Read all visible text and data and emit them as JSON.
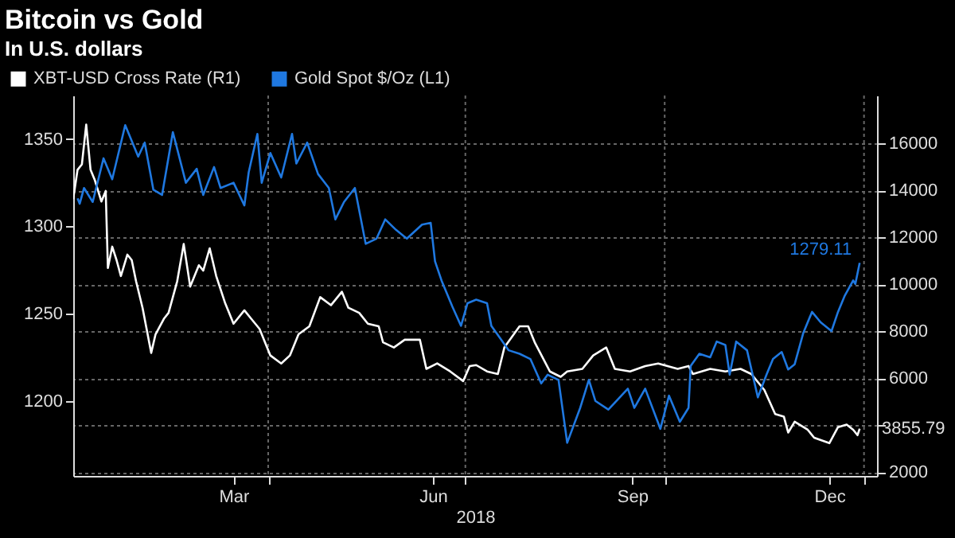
{
  "chart_data": {
    "type": "line",
    "title": "Bitcoin vs Gold",
    "subtitle": "In U.S. dollars",
    "xlabel": "2018",
    "xlim": [
      "2018-01-01",
      "2019-01-07"
    ],
    "xticks": [
      {
        "value": "2018-03-16",
        "label": "Mar"
      },
      {
        "value": "2018-06-16",
        "label": "Jun"
      },
      {
        "value": "2018-09-16",
        "label": "Sep"
      },
      {
        "value": "2018-12-16",
        "label": "Dec"
      },
      {
        "value": "2018-04-01",
        "label": null
      },
      {
        "value": "2018-07-01",
        "label": null
      },
      {
        "value": "2018-10-01",
        "label": null
      },
      {
        "value": "2019-01-01",
        "label": null
      }
    ],
    "ylim": [
      1157,
      1375
    ],
    "yticks": [
      1200,
      1250,
      1300,
      1350
    ],
    "y2lim": [
      1845,
      18030
    ],
    "y2ticks": [
      2000,
      {
        "value": 4000,
        "label": null
      },
      6000,
      8000,
      10000,
      12000,
      14000,
      16000
    ],
    "grid": true,
    "legend": "top left",
    "series": [
      {
        "name": "XBT-USD Cross Rate  (R1)",
        "color": "#ffffff",
        "axis": "y2",
        "x": [
          "2018-01-01",
          "2018-01-03",
          "2018-01-05",
          "2018-01-07",
          "2018-01-09",
          "2018-01-11",
          "2018-01-14",
          "2018-01-16",
          "2018-01-17",
          "2018-01-19",
          "2018-01-21",
          "2018-01-23",
          "2018-01-26",
          "2018-01-28",
          "2018-01-30",
          "2018-02-02",
          "2018-02-06",
          "2018-02-08",
          "2018-02-12",
          "2018-02-14",
          "2018-02-18",
          "2018-02-21",
          "2018-02-24",
          "2018-02-28",
          "2018-03-02",
          "2018-03-05",
          "2018-03-08",
          "2018-03-12",
          "2018-03-16",
          "2018-03-21",
          "2018-03-24",
          "2018-03-28",
          "2018-04-02",
          "2018-04-07",
          "2018-04-11",
          "2018-04-15",
          "2018-04-20",
          "2018-04-25",
          "2018-04-30",
          "2018-05-05",
          "2018-05-08",
          "2018-05-13",
          "2018-05-17",
          "2018-05-22",
          "2018-05-24",
          "2018-05-29",
          "2018-06-03",
          "2018-06-10",
          "2018-06-13",
          "2018-06-18",
          "2018-06-24",
          "2018-06-30",
          "2018-07-03",
          "2018-07-06",
          "2018-07-11",
          "2018-07-16",
          "2018-07-19",
          "2018-07-26",
          "2018-07-30",
          "2018-08-02",
          "2018-08-09",
          "2018-08-14",
          "2018-08-17",
          "2018-08-24",
          "2018-08-29",
          "2018-09-04",
          "2018-09-08",
          "2018-09-15",
          "2018-09-22",
          "2018-09-28",
          "2018-10-07",
          "2018-10-12",
          "2018-10-14",
          "2018-10-22",
          "2018-10-29",
          "2018-11-05",
          "2018-11-10",
          "2018-11-16",
          "2018-11-21",
          "2018-11-25",
          "2018-11-27",
          "2018-11-30",
          "2018-12-06",
          "2018-12-09",
          "2018-12-16",
          "2018-12-20",
          "2018-12-24",
          "2018-12-27",
          "2018-12-29",
          "2018-12-30"
        ],
        "values": [
          13630,
          14870,
          15100,
          16790,
          14870,
          14420,
          13520,
          13970,
          10690,
          11600,
          11030,
          10350,
          11260,
          11030,
          10130,
          9000,
          7080,
          7870,
          8550,
          8780,
          10130,
          11710,
          9900,
          10810,
          10580,
          11530,
          10350,
          9230,
          8320,
          8890,
          8550,
          8100,
          6970,
          6630,
          6970,
          7870,
          8210,
          9450,
          9110,
          9680,
          9000,
          8780,
          8320,
          8210,
          7530,
          7310,
          7640,
          7640,
          6400,
          6630,
          6290,
          5880,
          6520,
          6560,
          6290,
          6180,
          7310,
          8210,
          8210,
          7530,
          6290,
          6060,
          6290,
          6400,
          6970,
          7310,
          6400,
          6290,
          6520,
          6630,
          6400,
          6520,
          6180,
          6400,
          6290,
          6400,
          6180,
          5500,
          4480,
          4370,
          3690,
          4150,
          3810,
          3470,
          3240,
          3920,
          4030,
          3810,
          3580,
          3855.79
        ],
        "value_labels": [
          null,
          null,
          null,
          null,
          null,
          null,
          null,
          null,
          null,
          null,
          null,
          null,
          null,
          null,
          null,
          null,
          null,
          null,
          null,
          null,
          null,
          null,
          null,
          null,
          null,
          null,
          null,
          null,
          null,
          null,
          null,
          null,
          null,
          null,
          null,
          null,
          null,
          null,
          null,
          null,
          null,
          null,
          null,
          null,
          null,
          null,
          null,
          null,
          null,
          null,
          null,
          null,
          null,
          null,
          null,
          null,
          null,
          null,
          null,
          null,
          null,
          null,
          null,
          null,
          null,
          null,
          null,
          null,
          null,
          null,
          null,
          null,
          null,
          null,
          null,
          null,
          null,
          null,
          null,
          null,
          null,
          null,
          null,
          null,
          null,
          null,
          null,
          null,
          null,
          "3855.79"
        ]
      },
      {
        "name": "Gold Spot $/Oz  (L1)",
        "color": "#1f78e0",
        "axis": "y",
        "x": [
          "2018-01-03",
          "2018-01-04",
          "2018-01-06",
          "2018-01-10",
          "2018-01-15",
          "2018-01-19",
          "2018-01-25",
          "2018-01-31",
          "2018-02-03",
          "2018-02-07",
          "2018-02-11",
          "2018-02-16",
          "2018-02-22",
          "2018-02-27",
          "2018-03-02",
          "2018-03-07",
          "2018-03-10",
          "2018-03-16",
          "2018-03-21",
          "2018-03-23",
          "2018-03-27",
          "2018-03-29",
          "2018-04-02",
          "2018-04-07",
          "2018-04-12",
          "2018-04-14",
          "2018-04-19",
          "2018-04-24",
          "2018-04-29",
          "2018-05-02",
          "2018-05-06",
          "2018-05-11",
          "2018-05-16",
          "2018-05-21",
          "2018-05-25",
          "2018-05-30",
          "2018-06-04",
          "2018-06-11",
          "2018-06-15",
          "2018-06-17",
          "2018-06-20",
          "2018-06-25",
          "2018-06-29",
          "2018-07-02",
          "2018-07-06",
          "2018-07-11",
          "2018-07-13",
          "2018-07-17",
          "2018-07-21",
          "2018-07-26",
          "2018-07-31",
          "2018-08-05",
          "2018-08-08",
          "2018-08-13",
          "2018-08-17",
          "2018-08-23",
          "2018-08-27",
          "2018-08-30",
          "2018-09-05",
          "2018-09-14",
          "2018-09-17",
          "2018-09-22",
          "2018-09-29",
          "2018-10-03",
          "2018-10-08",
          "2018-10-12",
          "2018-10-13",
          "2018-10-17",
          "2018-10-22",
          "2018-10-25",
          "2018-10-29",
          "2018-10-31",
          "2018-11-03",
          "2018-11-08",
          "2018-11-13",
          "2018-11-17",
          "2018-11-20",
          "2018-11-24",
          "2018-11-27",
          "2018-11-30",
          "2018-12-04",
          "2018-12-08",
          "2018-12-12",
          "2018-12-17",
          "2018-12-20",
          "2018-12-23",
          "2018-12-27",
          "2018-12-28",
          "2018-12-30"
        ],
        "values": [
          1316,
          1313,
          1322,
          1314,
          1339,
          1327,
          1358,
          1340,
          1348,
          1321,
          1318,
          1354,
          1325,
          1333,
          1318,
          1334,
          1322,
          1325,
          1312,
          1331,
          1353,
          1325,
          1342,
          1328,
          1353,
          1336,
          1348,
          1330,
          1322,
          1304,
          1314,
          1322,
          1290,
          1293,
          1304,
          1298,
          1293,
          1301,
          1302,
          1280,
          1269,
          1254,
          1243,
          1256,
          1258,
          1256,
          1243,
          1236,
          1229,
          1227,
          1224,
          1210,
          1215,
          1212,
          1176,
          1196,
          1212,
          1200,
          1195,
          1207,
          1196,
          1207,
          1184,
          1203,
          1188,
          1196,
          1220,
          1227,
          1225,
          1234,
          1232,
          1215,
          1234,
          1229,
          1202,
          1215,
          1224,
          1228,
          1218,
          1221,
          1239,
          1251,
          1245,
          1240,
          1251,
          1260,
          1269,
          1267,
          1279.11
        ],
        "value_labels": [
          null,
          null,
          null,
          null,
          null,
          null,
          null,
          null,
          null,
          null,
          null,
          null,
          null,
          null,
          null,
          null,
          null,
          null,
          null,
          null,
          null,
          null,
          null,
          null,
          null,
          null,
          null,
          null,
          null,
          null,
          null,
          null,
          null,
          null,
          null,
          null,
          null,
          null,
          null,
          null,
          null,
          null,
          null,
          null,
          null,
          null,
          null,
          null,
          null,
          null,
          null,
          null,
          null,
          null,
          null,
          null,
          null,
          null,
          null,
          null,
          null,
          null,
          null,
          null,
          null,
          null,
          null,
          null,
          null,
          null,
          null,
          null,
          null,
          null,
          null,
          null,
          null,
          null,
          null,
          null,
          null,
          null,
          null,
          null,
          null,
          null,
          null,
          null,
          "1279.11"
        ]
      }
    ]
  }
}
